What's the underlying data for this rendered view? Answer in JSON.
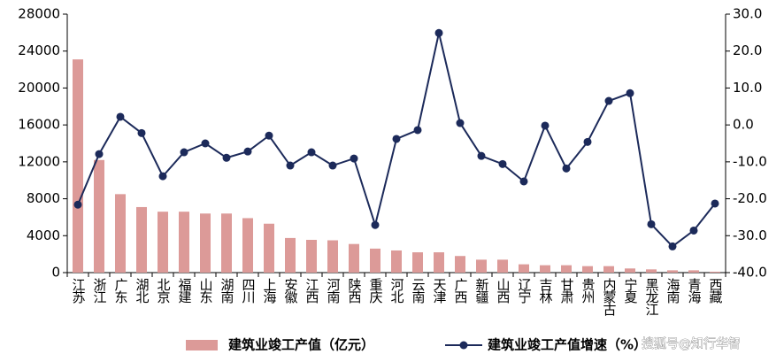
{
  "chart_data": {
    "type": "bar_line",
    "categories": [
      "江苏",
      "浙江",
      "广东",
      "湖北",
      "北京",
      "福建",
      "山东",
      "湖南",
      "四川",
      "上海",
      "安徽",
      "江西",
      "河南",
      "陕西",
      "重庆",
      "河北",
      "云南",
      "天津",
      "广西",
      "新疆",
      "山西",
      "辽宁",
      "吉林",
      "甘肃",
      "贵州",
      "内蒙古",
      "宁夏",
      "黑龙江",
      "海南",
      "青海",
      "西藏"
    ],
    "series": [
      {
        "name": "建筑业竣工产值（亿元）",
        "type": "bar",
        "color": "#dc9a98",
        "values": [
          23100,
          12200,
          8500,
          7100,
          6600,
          6600,
          6400,
          6400,
          5900,
          5300,
          3750,
          3550,
          3500,
          3100,
          2600,
          2400,
          2200,
          2200,
          1800,
          1400,
          1400,
          900,
          800,
          800,
          700,
          700,
          450,
          350,
          250,
          250,
          100
        ]
      },
      {
        "name": "建筑业竣工产值增速（%）",
        "type": "line",
        "axis": "y2",
        "color": "#1c2a5a",
        "values": [
          -21.6,
          -7.9,
          2.2,
          -2.2,
          -13.9,
          -7.4,
          -5.0,
          -8.9,
          -7.2,
          -2.9,
          -11.0,
          -7.4,
          -11.0,
          -9.1,
          -27.1,
          -3.8,
          -1.4,
          24.9,
          0.5,
          -8.4,
          -10.6,
          -15.3,
          -0.2,
          -11.8,
          -4.6,
          6.5,
          8.6,
          -26.9,
          -32.9,
          -28.6,
          -21.3
        ]
      }
    ],
    "ylim": [
      0,
      28000
    ],
    "yticks": [
      0,
      4000,
      8000,
      12000,
      16000,
      20000,
      24000,
      28000
    ],
    "y2lim": [
      -40,
      30
    ],
    "y2ticks": [
      {
        "value": -40,
        "label": "-40.0"
      },
      {
        "value": -30,
        "label": "-30.0"
      },
      {
        "value": -20,
        "label": "-20.0"
      },
      {
        "value": -10,
        "label": "-10.0"
      },
      {
        "value": 0,
        "label": "0.0"
      },
      {
        "value": 10,
        "label": "10.0"
      },
      {
        "value": 20,
        "label": "20.0"
      },
      {
        "value": 30,
        "label": "30.0"
      }
    ],
    "grid": false,
    "watermark": "搜狐号@知行华智"
  }
}
